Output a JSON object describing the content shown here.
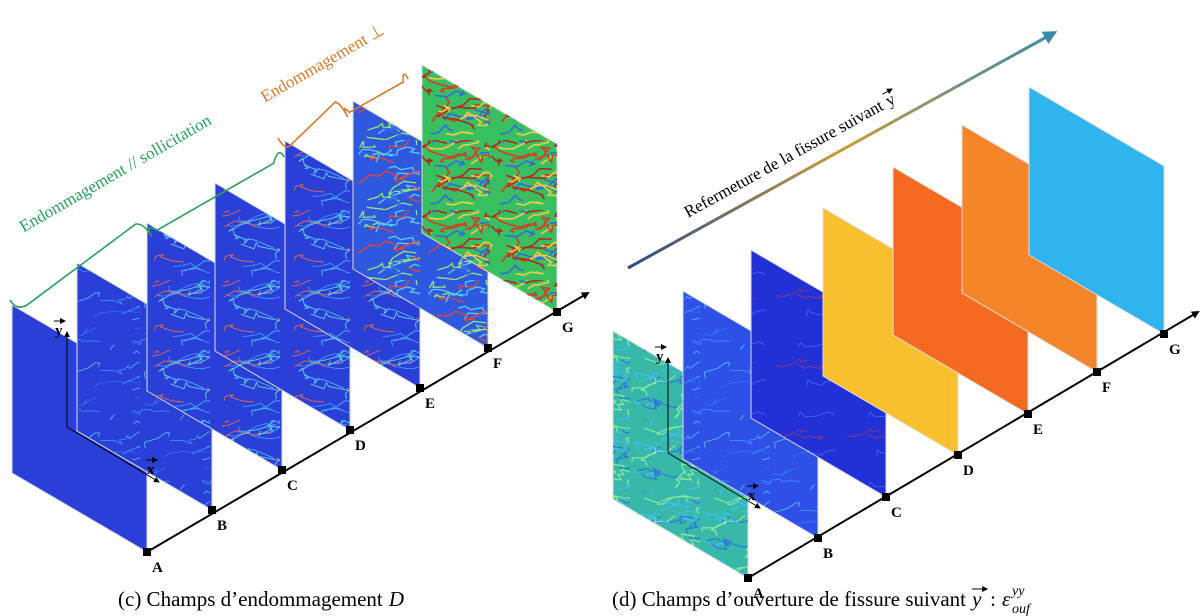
{
  "panels": [
    {
      "bracket_labels": [
        "Endommagement // sollicitation",
        "Endommagement ⊥"
      ],
      "stations": [
        "A",
        "B",
        "C",
        "D",
        "E",
        "F",
        "G"
      ],
      "axis_labels": {
        "y": "y",
        "x": "x"
      },
      "caption": {
        "text": "(c) Champs d’endommagement",
        "symbol": "D"
      }
    },
    {
      "arrow_label": {
        "text": "Refermeture de la fissure suivant",
        "vector": "y"
      },
      "stations": [
        "A",
        "B",
        "C",
        "D",
        "E",
        "F",
        "G"
      ],
      "axis_labels": {
        "y": "y",
        "x": "x"
      },
      "caption": {
        "text": "(d) Champs d’ouverture de fissure suivant",
        "vector": "y",
        "separator": ":",
        "symbol": "ε",
        "sup": "yy",
        "sub": "ouf"
      }
    }
  ]
}
